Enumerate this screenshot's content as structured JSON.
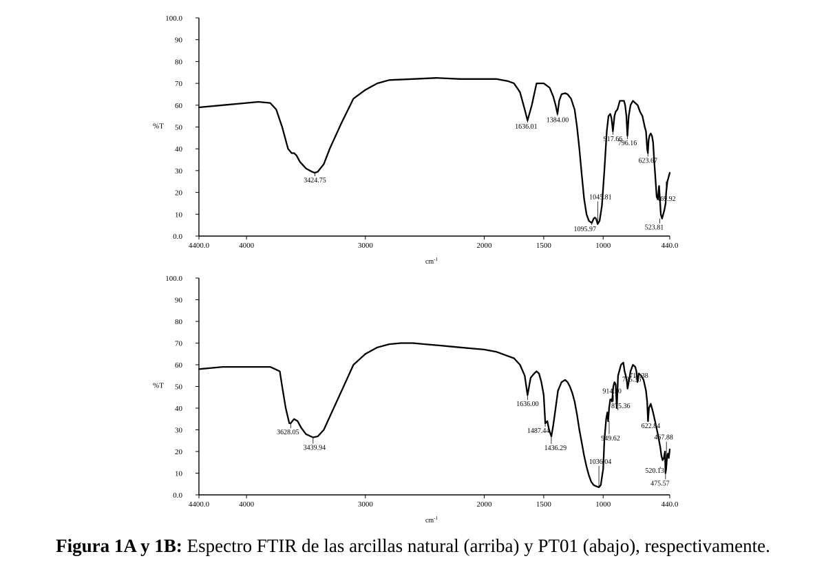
{
  "figure": {
    "caption_bold": "Figura 1A y 1B:",
    "caption_rest": " Espectro FTIR de las arcillas natural (arriba) y  PT01 (abajo), respectivamente."
  },
  "chart_data": [
    {
      "type": "line",
      "title": "",
      "xlabel": "cm-1",
      "ylabel": "%T",
      "xlim": [
        4400,
        440
      ],
      "ylim": [
        0,
        100
      ],
      "x_ticks": [
        "4400.0",
        "4000",
        "3000",
        "2000",
        "1500",
        "1000",
        "440.0"
      ],
      "y_ticks": [
        "0.0",
        "10",
        "20",
        "30",
        "40",
        "50",
        "60",
        "70",
        "80",
        "90",
        "100.0"
      ],
      "grid": false,
      "series": [
        {
          "x": [
            4400,
            4200,
            4000,
            3900,
            3800,
            3750,
            3700,
            3650,
            3620,
            3600,
            3580,
            3550,
            3500,
            3450,
            3425,
            3400,
            3350,
            3300,
            3200,
            3100,
            3000,
            2900,
            2800,
            2600,
            2400,
            2200,
            2000,
            1900,
            1800,
            1750,
            1700,
            1660,
            1636,
            1600,
            1560,
            1540,
            1500,
            1450,
            1420,
            1400,
            1384,
            1370,
            1350,
            1320,
            1300,
            1270,
            1240,
            1220,
            1200,
            1180,
            1160,
            1140,
            1120,
            1096,
            1080,
            1070,
            1060,
            1046,
            1030,
            1010,
            990,
            970,
            955,
            940,
            930,
            918,
            905,
            895,
            880,
            860,
            840,
            825,
            815,
            805,
            796,
            785,
            770,
            750,
            730,
            710,
            690,
            670,
            650,
            640,
            630,
            624,
            618,
            610,
            600,
            590,
            580,
            570,
            560,
            550,
            540,
            530,
            524,
            515,
            505,
            495,
            485,
            475,
            470,
            460,
            450,
            440
          ],
          "y": [
            59,
            60,
            61,
            61.5,
            61,
            58,
            50,
            40,
            38,
            38,
            37,
            34,
            31,
            29.5,
            29,
            29.5,
            33,
            40,
            52,
            63,
            67,
            70,
            71.5,
            72,
            72.5,
            72,
            72,
            72,
            71,
            70,
            66,
            58,
            53,
            60,
            70,
            70,
            70,
            68,
            64,
            60,
            56,
            62,
            65,
            65.5,
            65,
            63,
            58,
            50,
            40,
            28,
            17,
            10,
            7,
            6,
            8,
            8.5,
            8,
            5.5,
            7,
            14,
            30,
            48,
            55,
            56,
            54,
            48,
            55,
            57,
            58,
            62,
            62,
            62,
            60,
            55,
            46,
            55,
            60,
            62,
            61,
            60,
            57,
            55,
            50,
            48,
            40,
            38,
            44,
            46,
            47,
            46,
            43,
            34,
            26,
            18,
            17,
            23,
            18,
            10,
            8,
            10,
            12,
            15,
            20,
            25,
            27,
            29
          ]
        }
      ],
      "annotations": [
        {
          "label": "3424.75",
          "x": 3424.75,
          "y": 29
        },
        {
          "label": "1636.01",
          "x": 1636.01,
          "y": 53
        },
        {
          "label": "1384.00",
          "x": 1384.0,
          "y": 56
        },
        {
          "label": "1095.97",
          "x": 1095.97,
          "y": 6
        },
        {
          "label": "1045.81",
          "x": 1045.81,
          "y": 5.5
        },
        {
          "label": "917.66",
          "x": 917.66,
          "y": 48
        },
        {
          "label": "796.16",
          "x": 796.16,
          "y": 46
        },
        {
          "label": "623.67",
          "x": 623.67,
          "y": 38
        },
        {
          "label": "523.81",
          "x": 523.81,
          "y": 8
        },
        {
          "label": "469.92",
          "x": 469.92,
          "y": 25
        }
      ]
    },
    {
      "type": "line",
      "title": "",
      "xlabel": "cm-1",
      "ylabel": "%T",
      "xlim": [
        4400,
        440
      ],
      "ylim": [
        0,
        100
      ],
      "x_ticks": [
        "4400.0",
        "4000",
        "3000",
        "2000",
        "1500",
        "1000",
        "440.0"
      ],
      "y_ticks": [
        "0.0",
        "10",
        "20",
        "30",
        "40",
        "50",
        "60",
        "70",
        "80",
        "90",
        "100.0"
      ],
      "grid": false,
      "series": [
        {
          "x": [
            4400,
            4200,
            4000,
            3800,
            3720,
            3700,
            3670,
            3640,
            3628,
            3600,
            3570,
            3540,
            3500,
            3460,
            3440,
            3400,
            3350,
            3300,
            3200,
            3100,
            3000,
            2900,
            2800,
            2700,
            2600,
            2500,
            2400,
            2300,
            2200,
            2100,
            2000,
            1900,
            1800,
            1750,
            1700,
            1660,
            1636,
            1610,
            1580,
            1560,
            1540,
            1520,
            1500,
            1487,
            1470,
            1455,
            1436,
            1420,
            1400,
            1380,
            1350,
            1320,
            1300,
            1280,
            1260,
            1240,
            1220,
            1200,
            1180,
            1160,
            1140,
            1120,
            1100,
            1080,
            1060,
            1036,
            1020,
            1000,
            990,
            975,
            965,
            958,
            950,
            940,
            930,
            925,
            915,
            905,
            895,
            885,
            875,
            865,
            850,
            830,
            820,
            810,
            800,
            795,
            785,
            770,
            750,
            730,
            720,
            712,
            700,
            680,
            660,
            640,
            630,
            623,
            615,
            600,
            580,
            560,
            540,
            530,
            520,
            510,
            500,
            490,
            480,
            476,
            470,
            462,
            455,
            448,
            440
          ],
          "y": [
            58,
            59,
            59,
            59,
            57,
            50,
            40,
            33,
            33,
            35,
            34,
            31,
            28,
            27,
            26.5,
            27,
            30,
            36,
            48,
            60,
            65,
            68,
            69.5,
            70,
            70,
            69.5,
            69,
            68.5,
            68,
            67.5,
            67,
            66,
            64,
            63,
            60,
            55,
            46,
            54,
            56,
            57,
            56,
            52,
            46,
            33,
            34,
            30,
            27,
            32,
            40,
            48,
            52,
            53,
            52,
            50,
            47,
            43,
            37,
            30,
            24,
            18,
            13,
            9,
            6,
            4.5,
            4,
            3.5,
            4.5,
            12,
            25,
            35,
            38,
            34,
            40,
            44,
            44,
            43,
            50,
            52,
            51,
            40,
            55,
            57,
            60,
            61,
            57,
            55,
            52,
            49,
            52,
            57,
            60,
            59,
            57,
            52,
            56,
            55,
            53,
            48,
            43,
            34,
            40,
            42,
            38,
            33,
            28,
            25,
            22,
            18,
            16,
            17,
            20,
            10,
            12,
            18,
            19,
            17,
            21
          ]
        }
      ],
      "annotations": [
        {
          "label": "3628.05",
          "x": 3628.05,
          "y": 33
        },
        {
          "label": "3439.94",
          "x": 3439.94,
          "y": 26.5
        },
        {
          "label": "1636.00",
          "x": 1636.0,
          "y": 46
        },
        {
          "label": "1487.44",
          "x": 1487.44,
          "y": 33
        },
        {
          "label": "1436.29",
          "x": 1436.29,
          "y": 27
        },
        {
          "label": "1036.04",
          "x": 1036.04,
          "y": 3.5
        },
        {
          "label": "949.62",
          "x": 949.62,
          "y": 34
        },
        {
          "label": "914.30",
          "x": 914.3,
          "y": 43
        },
        {
          "label": "875.36",
          "x": 875.36,
          "y": 40
        },
        {
          "label": "795.36",
          "x": 795.36,
          "y": 49
        },
        {
          "label": "712.38",
          "x": 712.38,
          "y": 52
        },
        {
          "label": "622.84",
          "x": 622.84,
          "y": 34
        },
        {
          "label": "467.88",
          "x": 467.88,
          "y": 16
        },
        {
          "label": "520.13",
          "x": 520.13,
          "y": 12
        },
        {
          "label": "475.57",
          "x": 475.57,
          "y": 10
        }
      ]
    }
  ]
}
